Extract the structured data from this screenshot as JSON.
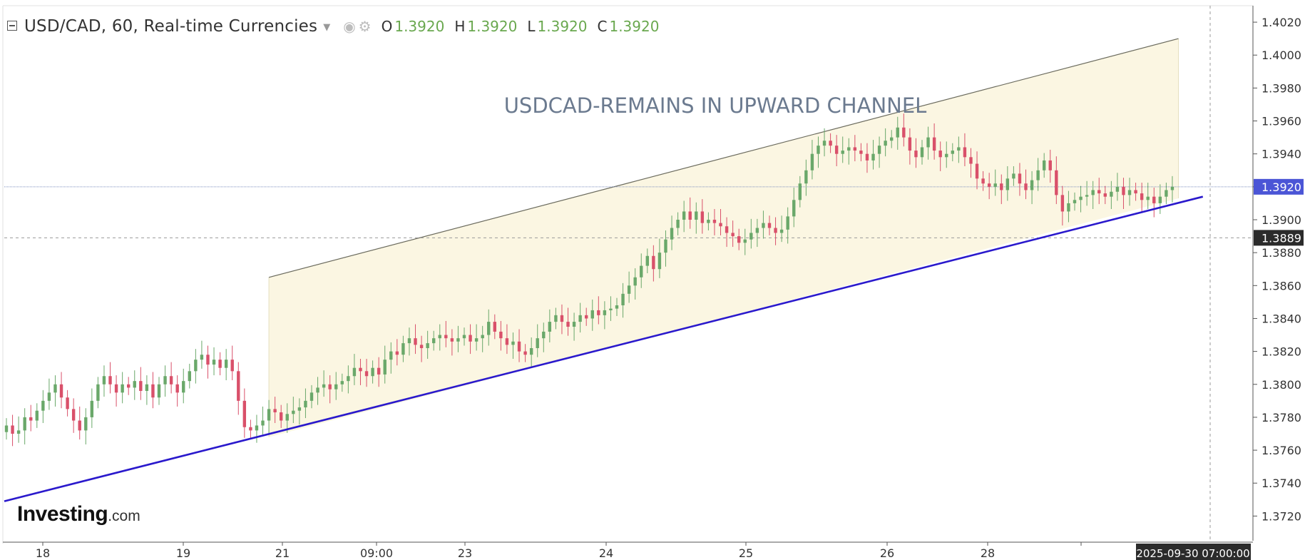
{
  "legend": {
    "symbol": "USD/CAD, 60, Real-time Currencies",
    "open_label": "O",
    "open": "1.3920",
    "high_label": "H",
    "high": "1.3920",
    "low_label": "L",
    "low": "1.3920",
    "close_label": "C",
    "close": "1.3920"
  },
  "logo": {
    "brand": "Investing",
    "domain": ".com"
  },
  "colors": {
    "up": "#6aa86a",
    "down": "#d9506a",
    "channel_fill": "#fbf6e2",
    "channel_upper": "#6b6b5e",
    "support_line": "#2a19cc",
    "price_tag": "#4b55d6",
    "crosshair_tag": "#2b2b2b",
    "axis_text": "#333333"
  },
  "chart_data": {
    "type": "candlestick",
    "title": "USDCAD-REMAINS  IN UPWARD CHANNEL",
    "symbol": "USD/CAD",
    "interval": "60",
    "ylim": [
      1.3705,
      1.403
    ],
    "y_ticks": [
      "1.3720",
      "1.3740",
      "1.3760",
      "1.3780",
      "1.3800",
      "1.3820",
      "1.3840",
      "1.3860",
      "1.3880",
      "1.3900",
      "1.3920",
      "1.3940",
      "1.3960",
      "1.3980",
      "1.4000",
      "1.4020"
    ],
    "x_ticks": [
      "18",
      "19",
      "21",
      "09:00",
      "23",
      "24",
      "25",
      "26",
      "28"
    ],
    "last_price": "1.3920",
    "crosshair_price": "1.3889",
    "crosshair_time": "2025-09-30 07:00:00",
    "closes": [
      1.3775,
      1.377,
      1.3772,
      1.378,
      1.3778,
      1.3784,
      1.379,
      1.3795,
      1.38,
      1.3792,
      1.3785,
      1.3778,
      1.3772,
      1.378,
      1.379,
      1.38,
      1.3805,
      1.38,
      1.3795,
      1.38,
      1.3798,
      1.3802,
      1.3796,
      1.38,
      1.3792,
      1.38,
      1.3805,
      1.38,
      1.3795,
      1.3802,
      1.3808,
      1.3815,
      1.3818,
      1.3812,
      1.3815,
      1.381,
      1.3815,
      1.3808,
      1.379,
      1.3774,
      1.3772,
      1.3775,
      1.3778,
      1.3785,
      1.3783,
      1.3778,
      1.3782,
      1.3784,
      1.3786,
      1.379,
      1.3795,
      1.3798,
      1.38,
      1.3797,
      1.38,
      1.3802,
      1.3805,
      1.381,
      1.3808,
      1.3805,
      1.381,
      1.3806,
      1.3815,
      1.382,
      1.3818,
      1.3825,
      1.3828,
      1.3824,
      1.3822,
      1.3825,
      1.3828,
      1.383,
      1.3828,
      1.3826,
      1.3828,
      1.383,
      1.3826,
      1.3828,
      1.383,
      1.3838,
      1.3832,
      1.3828,
      1.3824,
      1.3826,
      1.382,
      1.3818,
      1.3822,
      1.3828,
      1.3832,
      1.3838,
      1.3842,
      1.3838,
      1.3835,
      1.3838,
      1.3842,
      1.384,
      1.3845,
      1.3842,
      1.3845,
      1.3846,
      1.3848,
      1.3855,
      1.386,
      1.3865,
      1.3872,
      1.3878,
      1.387,
      1.388,
      1.3888,
      1.3895,
      1.39,
      1.3905,
      1.39,
      1.3905,
      1.3898,
      1.39,
      1.3898,
      1.3896,
      1.3892,
      1.389,
      1.3886,
      1.3888,
      1.3892,
      1.3895,
      1.3898,
      1.3895,
      1.3892,
      1.3894,
      1.3902,
      1.3912,
      1.3922,
      1.393,
      1.394,
      1.3945,
      1.3948,
      1.3945,
      1.394,
      1.3942,
      1.3944,
      1.3942,
      1.394,
      1.3936,
      1.394,
      1.3945,
      1.3948,
      1.395,
      1.3956,
      1.395,
      1.3942,
      1.3938,
      1.3944,
      1.395,
      1.3942,
      1.3938,
      1.394,
      1.3942,
      1.3944,
      1.3938,
      1.3934,
      1.3925,
      1.3922,
      1.392,
      1.3922,
      1.3918,
      1.3925,
      1.3928,
      1.3922,
      1.3918,
      1.3924,
      1.393,
      1.3936,
      1.393,
      1.3915,
      1.3905,
      1.391,
      1.3912,
      1.3914,
      1.3915,
      1.3918,
      1.3916,
      1.3914,
      1.3917,
      1.392,
      1.3915,
      1.3918,
      1.3916,
      1.3912,
      1.3914,
      1.391,
      1.3914,
      1.3918,
      1.392
    ],
    "annotations": {
      "channel_upper": {
        "from_bar": 43,
        "from_price": 1.3865,
        "to_bar": 192,
        "to_price": 1.401
      },
      "channel_lower_bar43_price": 1.3768,
      "support_line": {
        "from_bar": 0,
        "from_price": 1.3729,
        "to_bar": 196,
        "to_price": 1.3914
      }
    }
  }
}
